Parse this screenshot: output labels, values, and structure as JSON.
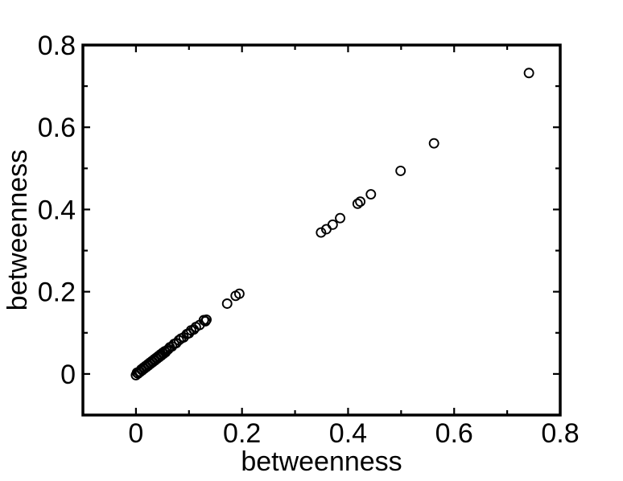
{
  "chart_data": {
    "type": "scatter",
    "title": "",
    "xlabel": "betweenness",
    "ylabel": "betweenness",
    "xlim": [
      -0.1,
      0.8
    ],
    "ylim": [
      -0.1,
      0.8
    ],
    "major_ticks": [
      0,
      0.2,
      0.4,
      0.6,
      0.8
    ],
    "minor_ticks": [
      0.1,
      0.3,
      0.5,
      0.7
    ],
    "x_tick_labels": [
      "0",
      "0.2",
      "0.4",
      "0.6",
      "0.8"
    ],
    "y_tick_labels": [
      "0",
      "0.2",
      "0.4",
      "0.6",
      "0.8"
    ],
    "grid": false,
    "legend": "none",
    "frame_color": "#000000",
    "background_color": "#ffffff",
    "marker": {
      "shape": "open-circle",
      "radius": 5.5,
      "stroke_width": 1.9,
      "color": "#000000",
      "fill": "none"
    },
    "points": [
      [
        0.0,
        -0.003
      ],
      [
        0.002,
        0.003
      ],
      [
        0.004,
        0.001
      ],
      [
        0.006,
        0.005
      ],
      [
        0.008,
        0.005
      ],
      [
        0.01,
        0.011
      ],
      [
        0.012,
        0.009
      ],
      [
        0.014,
        0.015
      ],
      [
        0.016,
        0.013
      ],
      [
        0.018,
        0.019
      ],
      [
        0.02,
        0.017
      ],
      [
        0.022,
        0.023
      ],
      [
        0.024,
        0.021
      ],
      [
        0.026,
        0.027
      ],
      [
        0.028,
        0.025
      ],
      [
        0.03,
        0.031
      ],
      [
        0.032,
        0.029
      ],
      [
        0.034,
        0.035
      ],
      [
        0.036,
        0.033
      ],
      [
        0.038,
        0.039
      ],
      [
        0.04,
        0.037
      ],
      [
        0.042,
        0.043
      ],
      [
        0.044,
        0.041
      ],
      [
        0.046,
        0.047
      ],
      [
        0.048,
        0.045
      ],
      [
        0.05,
        0.051
      ],
      [
        0.052,
        0.049
      ],
      [
        0.054,
        0.055
      ],
      [
        0.056,
        0.053
      ],
      [
        0.058,
        0.057
      ],
      [
        0.061,
        0.06
      ],
      [
        0.064,
        0.065
      ],
      [
        0.068,
        0.067
      ],
      [
        0.072,
        0.073
      ],
      [
        0.076,
        0.075
      ],
      [
        0.081,
        0.082
      ],
      [
        0.085,
        0.086
      ],
      [
        0.09,
        0.089
      ],
      [
        0.096,
        0.097
      ],
      [
        0.1,
        0.099
      ],
      [
        0.104,
        0.106
      ],
      [
        0.109,
        0.108
      ],
      [
        0.113,
        0.114
      ],
      [
        0.12,
        0.119
      ],
      [
        0.128,
        0.131
      ],
      [
        0.131,
        0.128
      ],
      [
        0.133,
        0.132
      ],
      [
        0.172,
        0.171
      ],
      [
        0.188,
        0.19
      ],
      [
        0.195,
        0.195
      ],
      [
        0.349,
        0.344
      ],
      [
        0.359,
        0.352
      ],
      [
        0.371,
        0.363
      ],
      [
        0.385,
        0.379
      ],
      [
        0.418,
        0.414
      ],
      [
        0.423,
        0.419
      ],
      [
        0.443,
        0.437
      ],
      [
        0.499,
        0.494
      ],
      [
        0.562,
        0.561
      ],
      [
        0.741,
        0.732
      ]
    ]
  }
}
